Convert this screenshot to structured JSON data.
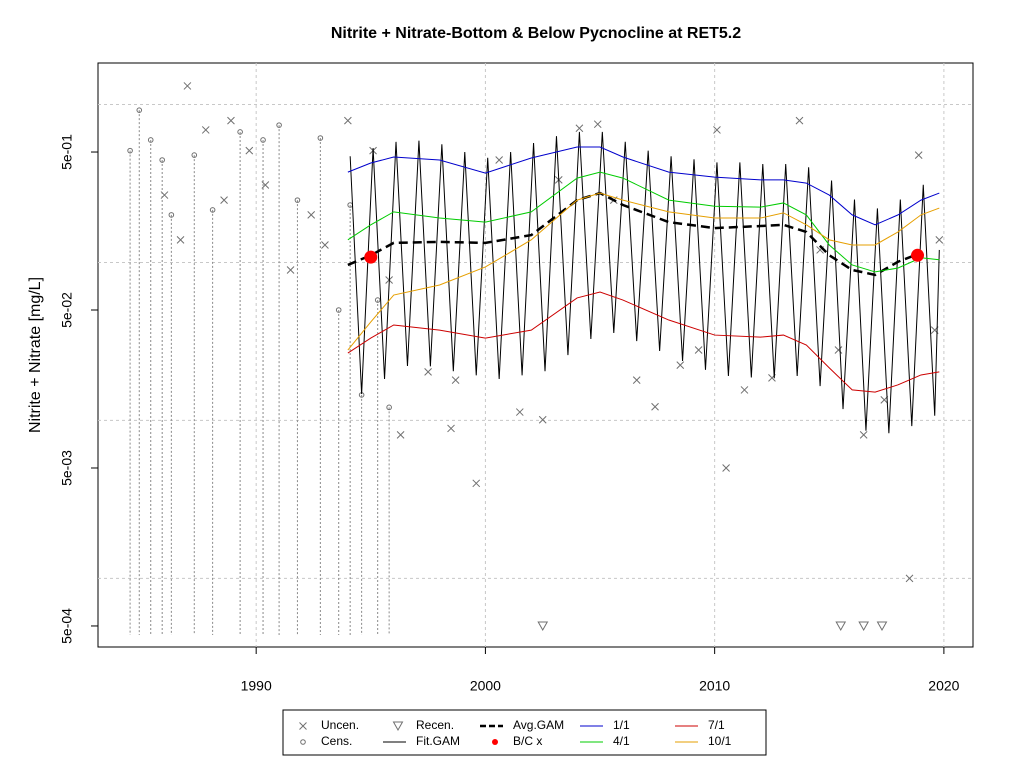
{
  "chart_data": {
    "type": "scatter",
    "title": "Nitrite + Nitrate-Bottom & Below Pycnocline at RET5.2",
    "y_label": "Nitrite + Nitrate [mg/L]",
    "ylog": true,
    "xlim": [
      1983.1,
      2021.27
    ],
    "ylim": [
      0.000368,
      1.83
    ],
    "xticks": [
      1990,
      2000,
      2010,
      2020
    ],
    "yticks": [
      {
        "value": 0.5,
        "label": "5e-01"
      },
      {
        "value": 0.05,
        "label": "5e-02"
      },
      {
        "value": 0.005,
        "label": "5e-03"
      },
      {
        "value": 0.0005,
        "label": "5e-04"
      }
    ],
    "ygrid": [
      1,
      0.1,
      0.01,
      0.001
    ],
    "grid": true,
    "legend": "bottom",
    "series": [
      {
        "name": "Uncen.",
        "color": "#707070",
        "marker": "x",
        "x": [
          1987.0,
          1986.0,
          1986.7,
          1987.8,
          1988.6,
          1988.9,
          1989.7,
          1990.4,
          1991.5,
          1992.4,
          1993.0,
          1994.0,
          1995.1,
          1995.8,
          1996.3,
          1997.5,
          1998.5,
          1998.7,
          1999.6,
          2000.6,
          2001.5,
          2002.5,
          2003.2,
          2004.1,
          2004.9,
          2005.6,
          2006.6,
          2007.4,
          2008.5,
          2009.3,
          2010.1,
          2010.5,
          2011.3,
          2012.5,
          2013.7,
          2014.6,
          2015.4,
          2016.5,
          2017.4,
          2018.5,
          2018.9,
          2019.6,
          2019.8
        ],
        "values": [
          1.31,
          0.267,
          0.139,
          0.69,
          0.248,
          0.79,
          0.51,
          0.309,
          0.0896,
          0.2,
          0.129,
          0.79,
          0.51,
          0.0774,
          0.0081,
          0.0203,
          0.0089,
          0.018,
          0.004,
          0.445,
          0.0113,
          0.0101,
          0.333,
          0.707,
          0.75,
          0.248,
          0.018,
          0.0122,
          0.0224,
          0.0279,
          0.69,
          0.005,
          0.0156,
          0.0186,
          0.79,
          0.12,
          0.0279,
          0.0081,
          0.0135,
          0.001,
          0.478,
          0.0373,
          0.139
        ]
      },
      {
        "name": "Cens.",
        "color": "#707070",
        "marker": "o",
        "censored": true,
        "x": [
          1984.5,
          1984.9,
          1985.4,
          1985.9,
          1986.3,
          1987.3,
          1988.1,
          1989.3,
          1990.3,
          1991.0,
          1991.8,
          1992.8,
          1993.6,
          1994.1,
          1994.6,
          1995.3,
          1995.8
        ],
        "values": [
          0.51,
          0.92,
          0.596,
          0.445,
          0.2,
          0.478,
          0.215,
          0.67,
          0.596,
          0.74,
          0.248,
          0.613,
          0.05,
          0.231,
          0.0145,
          0.0578,
          0.0121
        ]
      },
      {
        "name": "Recen.",
        "color": "#707070",
        "marker": "triangle",
        "x": [
          2002.5,
          2015.5,
          2016.5,
          2017.3
        ],
        "values": [
          0.0005,
          0.0005,
          0.0005,
          0.0005
        ]
      },
      {
        "name": "Fit.GAM",
        "color": "#000000",
        "line": "solid",
        "width": 1,
        "x": [
          1994.1,
          1994.6,
          1995.1,
          1995.6,
          1996.1,
          1996.6,
          1997.1,
          1997.6,
          1998.1,
          1998.6,
          1999.1,
          1999.6,
          2000.1,
          2000.6,
          2001.1,
          2001.6,
          2002.1,
          2002.6,
          2003.1,
          2003.6,
          2004.1,
          2004.6,
          2005.1,
          2005.6,
          2006.1,
          2006.6,
          2007.1,
          2007.6,
          2008.1,
          2008.6,
          2009.1,
          2009.6,
          2010.1,
          2010.6,
          2011.1,
          2011.6,
          2012.1,
          2012.6,
          2013.1,
          2013.6,
          2014.1,
          2014.6,
          2015.1,
          2015.6,
          2016.1,
          2016.6,
          2017.1,
          2017.6,
          2018.1,
          2018.6,
          2019.1,
          2019.6,
          2019.8
        ],
        "values": [
          0.47,
          0.0147,
          0.53,
          0.0183,
          0.58,
          0.0221,
          0.59,
          0.022,
          0.56,
          0.0205,
          0.5,
          0.0193,
          0.46,
          0.0183,
          0.5,
          0.0193,
          0.57,
          0.0205,
          0.63,
          0.0259,
          0.67,
          0.0328,
          0.67,
          0.0358,
          0.58,
          0.0318,
          0.51,
          0.0275,
          0.47,
          0.0238,
          0.45,
          0.0209,
          0.43,
          0.0191,
          0.43,
          0.0187,
          0.42,
          0.0185,
          0.42,
          0.0191,
          0.4,
          0.0165,
          0.33,
          0.0118,
          0.25,
          0.0086,
          0.22,
          0.0083,
          0.25,
          0.0092,
          0.31,
          0.0107,
          0.12
        ]
      },
      {
        "name": "Avg.GAM",
        "color": "#000000",
        "line": "dashed",
        "width": 2.5,
        "x": [
          1994,
          1995,
          1996,
          1998,
          2000,
          2002,
          2004,
          2005,
          2006,
          2008,
          2010,
          2012,
          2013,
          2014,
          2015,
          2016,
          2017,
          2018,
          2019
        ],
        "values": [
          0.0964,
          0.111,
          0.133,
          0.135,
          0.133,
          0.149,
          0.248,
          0.275,
          0.231,
          0.18,
          0.165,
          0.17,
          0.173,
          0.156,
          0.111,
          0.0896,
          0.0834,
          0.101,
          0.115
        ]
      },
      {
        "name": "B/C x",
        "color": "#ff0000",
        "marker": "dot",
        "x": [
          1995.0,
          2018.85
        ],
        "values": [
          0.108,
          0.111
        ]
      },
      {
        "name": "1/1",
        "color": "#0000cc",
        "line": "solid",
        "width": 1,
        "x": [
          1994,
          1995,
          1996,
          1998,
          2000,
          2002,
          2004,
          2005,
          2006,
          2008,
          2010,
          2012,
          2013,
          2014,
          2015,
          2016,
          2017,
          2018,
          2019,
          2019.8
        ],
        "values": [
          0.373,
          0.426,
          0.465,
          0.445,
          0.368,
          0.458,
          0.538,
          0.538,
          0.465,
          0.373,
          0.347,
          0.333,
          0.333,
          0.318,
          0.267,
          0.2,
          0.173,
          0.2,
          0.248,
          0.275
        ]
      },
      {
        "name": "4/1",
        "color": "#00cc00",
        "line": "solid",
        "width": 1,
        "x": [
          1994,
          1995,
          1996,
          1998,
          2000,
          2002,
          2004,
          2005,
          2006,
          2008,
          2010,
          2012,
          2013,
          2014,
          2015,
          2016,
          2017,
          2018,
          2019,
          2019.8
        ],
        "values": [
          0.139,
          0.173,
          0.209,
          0.191,
          0.18,
          0.209,
          0.342,
          0.373,
          0.342,
          0.248,
          0.227,
          0.224,
          0.238,
          0.2,
          0.129,
          0.0964,
          0.0871,
          0.0922,
          0.107,
          0.104
        ]
      },
      {
        "name": "7/1",
        "color": "#cc0000",
        "line": "solid",
        "width": 1,
        "x": [
          1994,
          1995,
          1996,
          1998,
          2000,
          2002,
          2004,
          2005,
          2006,
          2008,
          2010,
          2012,
          2013,
          2014,
          2015,
          2016,
          2017,
          2018,
          2019,
          2019.8
        ],
        "values": [
          0.0267,
          0.0332,
          0.0402,
          0.0373,
          0.0332,
          0.0373,
          0.0596,
          0.065,
          0.0578,
          0.0432,
          0.0347,
          0.0337,
          0.0347,
          0.03,
          0.0215,
          0.0156,
          0.0151,
          0.0168,
          0.0194,
          0.0203
        ]
      },
      {
        "name": "10/1",
        "color": "#e69f00",
        "line": "solid",
        "width": 1,
        "x": [
          1994,
          1995,
          1996,
          1998,
          2000,
          2002,
          2004,
          2005,
          2006,
          2008,
          2010,
          2012,
          2013,
          2014,
          2015,
          2016,
          2017,
          2018,
          2019,
          2019.8
        ],
        "values": [
          0.0279,
          0.042,
          0.0622,
          0.072,
          0.0936,
          0.139,
          0.248,
          0.275,
          0.248,
          0.209,
          0.191,
          0.191,
          0.206,
          0.173,
          0.139,
          0.129,
          0.129,
          0.156,
          0.2,
          0.221
        ]
      }
    ]
  }
}
